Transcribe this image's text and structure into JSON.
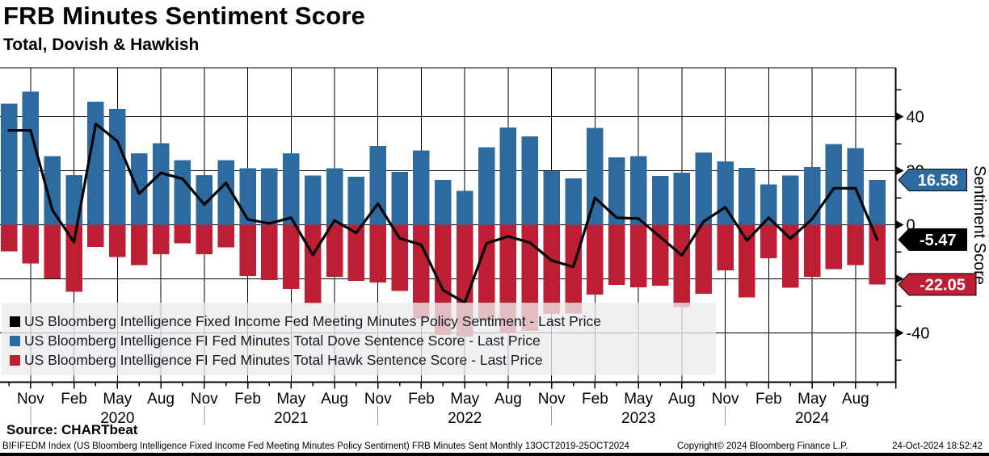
{
  "header": {
    "title": "FRB Minutes Sentiment Score",
    "subtitle": "Total, Dovish & Hawkish"
  },
  "chart_data": {
    "type": "bar",
    "title": "FRB Minutes Sentiment Score",
    "subtitle": "Total, Dovish & Hawkish",
    "grid": true,
    "legend_position": "bottom-left-overlay",
    "x": [
      "Oct 2019",
      "Nov 2019",
      "Jan 2020",
      "Feb 2020",
      "Apr 2020",
      "May 2020",
      "Jul 2020",
      "Aug 2020",
      "Oct 2020",
      "Nov 2020",
      "Jan 2021",
      "Feb 2021",
      "Apr 2021",
      "May 2021",
      "Jul 2021",
      "Aug 2021",
      "Oct 2021",
      "Nov 2021",
      "Jan 2022",
      "Feb 2022",
      "Apr 2022",
      "May 2022",
      "Jul 2022",
      "Aug 2022",
      "Oct 2022",
      "Nov 2022",
      "Jan 2023",
      "Feb 2023",
      "Apr 2023",
      "May 2023",
      "Jul 2023",
      "Aug 2023",
      "Oct 2023",
      "Nov 2023",
      "Jan 2024",
      "Feb 2024",
      "Apr 2024",
      "May 2024",
      "Jul 2024",
      "Aug 2024",
      "Oct 2024"
    ],
    "series": [
      {
        "name": "US Bloomberg Intelligence Fixed Income Fed Meeting Minutes Policy Sentiment - Last Price",
        "type": "line",
        "color": "#000000",
        "last_value": -5.47,
        "values": [
          34.9,
          34.9,
          5.5,
          -6.4,
          37.3,
          30.9,
          11.5,
          19.2,
          17.0,
          7.5,
          15.5,
          2.0,
          0.5,
          2.6,
          -11.1,
          1.6,
          -3.0,
          7.8,
          -5.0,
          -7.4,
          -24.2,
          -28.8,
          -6.9,
          -4.3,
          -6.6,
          -13.2,
          -15.6,
          10.0,
          2.6,
          2.3,
          -4.5,
          -11.3,
          1.2,
          6.5,
          -5.8,
          2.6,
          -5.1,
          2.1,
          13.5,
          13.5,
          -5.47
        ]
      },
      {
        "name": "US Bloomberg Intelligence FI Fed Minutes Total Dove Sentence Score - Last Price",
        "type": "bar",
        "color": "#2d6aa0",
        "last_value": 16.58,
        "values": [
          44.8,
          49.3,
          25.4,
          18.4,
          45.5,
          42.8,
          26.4,
          30.1,
          23.9,
          18.4,
          23.9,
          20.9,
          20.9,
          26.4,
          18.2,
          20.9,
          17.8,
          29.1,
          19.5,
          27.4,
          16.5,
          12.5,
          28.6,
          35.9,
          32.7,
          19.8,
          17.2,
          35.8,
          24.9,
          25.4,
          18.0,
          19.2,
          26.7,
          23.4,
          21.0,
          15.0,
          18.2,
          21.4,
          29.9,
          28.4,
          16.58
        ]
      },
      {
        "name": "US Bloomberg Intelligence FI Fed Minutes Total Hawk Sentence Score - Last Price",
        "type": "bar",
        "color": "#bd1e33",
        "last_value": -22.05,
        "values": [
          -9.9,
          -14.4,
          -19.9,
          -24.8,
          -8.2,
          -11.9,
          -14.9,
          -10.9,
          -6.9,
          -10.9,
          -8.4,
          -18.9,
          -20.4,
          -23.8,
          -29.3,
          -19.3,
          -20.8,
          -21.3,
          -24.5,
          -34.8,
          -40.7,
          -41.3,
          -35.5,
          -40.2,
          -39.3,
          -33.0,
          -32.8,
          -25.8,
          -22.3,
          -23.1,
          -22.5,
          -30.5,
          -25.5,
          -16.9,
          -26.8,
          -12.4,
          -23.3,
          -19.3,
          -16.4,
          -14.9,
          -22.05
        ]
      }
    ],
    "y_axis": {
      "label": "Sentiment Score",
      "ticks": [
        40,
        20,
        0,
        -20,
        -40
      ],
      "minor_ticks": [
        50,
        30,
        10,
        -10,
        -30,
        -50
      ],
      "visible_range": [
        -58,
        58
      ]
    },
    "x_axis": {
      "tick_labels": [
        "Nov",
        "Feb",
        "May",
        "Aug",
        "Nov",
        "Feb",
        "May",
        "Aug",
        "Nov",
        "Feb",
        "May",
        "Aug",
        "Nov",
        "Feb",
        "May",
        "Aug",
        "Nov",
        "Feb",
        "May",
        "Aug"
      ],
      "year_labels": [
        "2020",
        "2021",
        "2022",
        "2023",
        "2024"
      ]
    }
  },
  "badges": [
    {
      "label": "16.58",
      "value": 16.58,
      "color": "#2d6aa0",
      "text_color": "#ffffff"
    },
    {
      "label": "-5.47",
      "value": -5.47,
      "color": "#000000",
      "text_color": "#ffffff"
    },
    {
      "label": "-22.05",
      "value": -22.05,
      "color": "#bd1e33",
      "text_color": "#ffffff"
    }
  ],
  "footer": {
    "source": "Source: CHARTbeat",
    "fine_print_left": "BIFIFEDM Index (US Bloomberg Intelligence Fixed Income Fed Meeting Minutes Policy Sentiment) FRB Minutes Sent  Monthly 13OCT2019-25OCT2024",
    "copyright": "Copyright© 2024 Bloomberg Finance L.P.",
    "timestamp": "24-Oct-2024 18:52:42"
  }
}
